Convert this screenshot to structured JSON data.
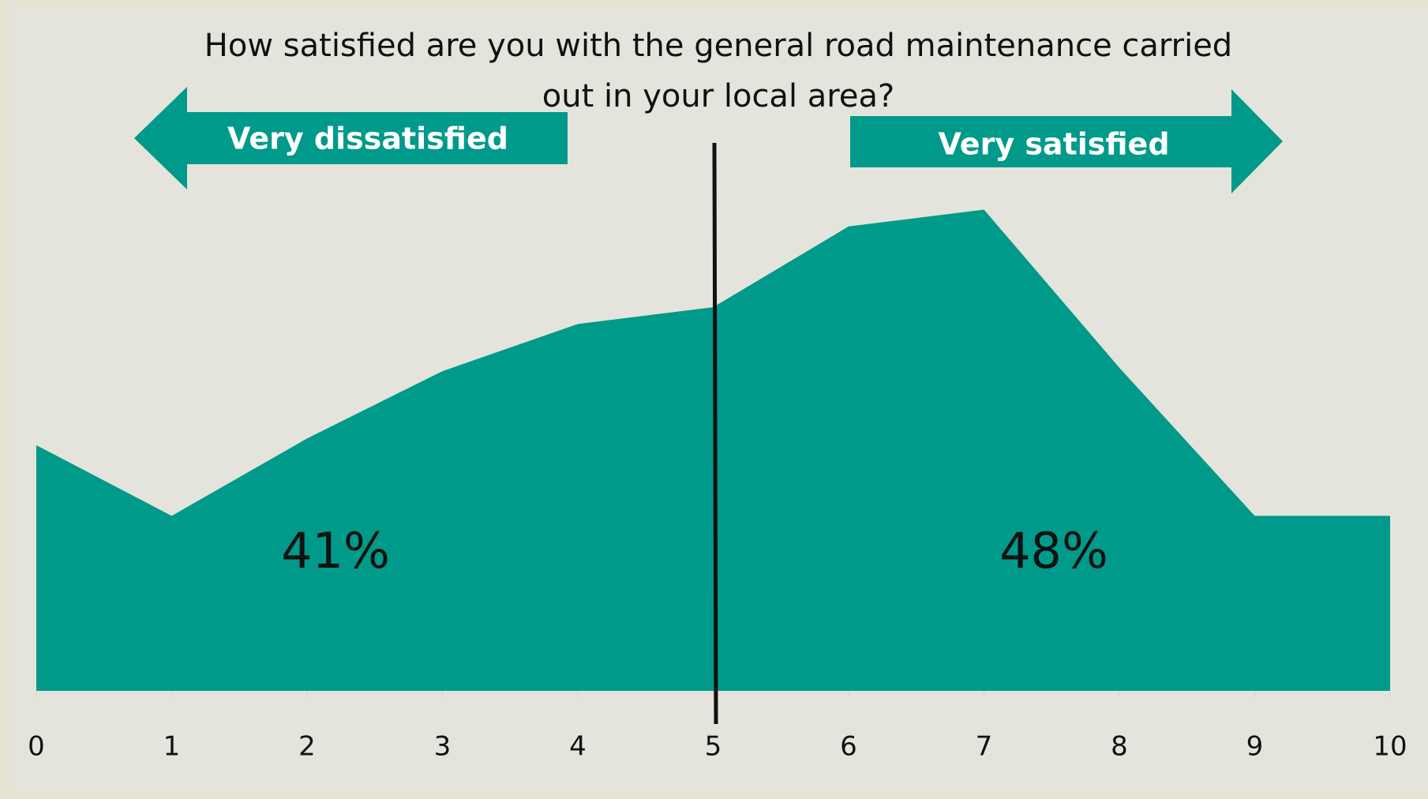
{
  "chart_data": {
    "type": "area",
    "title": "How satisfied are you with the general road maintenance carried out in your local area?",
    "x": [
      0,
      1,
      2,
      3,
      4,
      5,
      6,
      7,
      8,
      9,
      10
    ],
    "values": [
      7.3,
      5.2,
      7.5,
      9.5,
      10.9,
      11.4,
      13.8,
      14.3,
      9.6,
      5.2,
      5.2
    ],
    "color": "#009a8a",
    "xlim": [
      0,
      10
    ],
    "xticks": [
      0,
      1,
      2,
      3,
      4,
      5,
      6,
      7,
      8,
      9,
      10
    ],
    "ylim": [
      0,
      16
    ],
    "annotations": {
      "left_arrow": "Very dissatisfied",
      "right_arrow": "Very satisfied",
      "left_share": "41%",
      "right_share": "48%"
    }
  }
}
